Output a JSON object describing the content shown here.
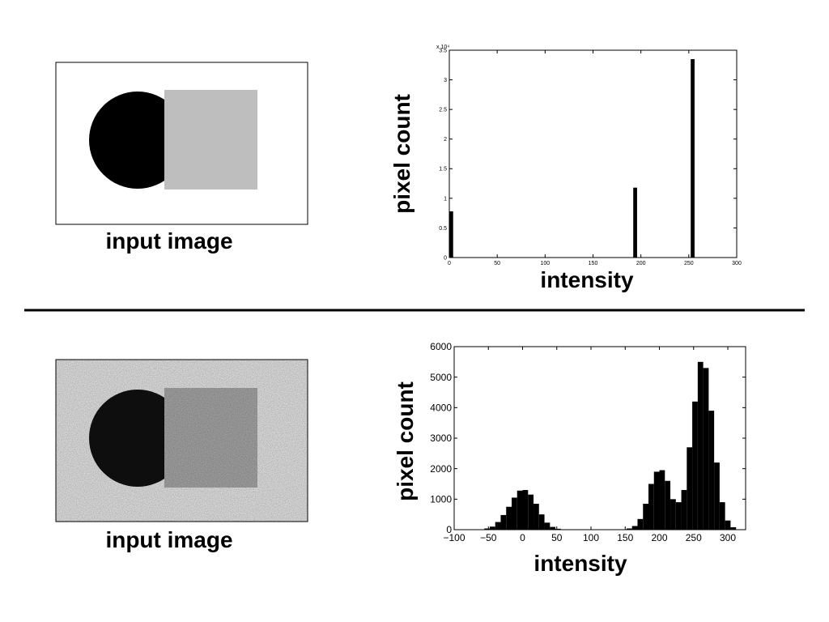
{
  "captions": [
    "input image",
    "input image"
  ],
  "chart_data": [
    {
      "type": "histogram",
      "ylabel": "pixel count",
      "xlabel": "intensity",
      "color": "#000000",
      "y_multiplier": "x 10⁴",
      "xlim": [
        0,
        300
      ],
      "ylim": [
        0,
        3.5
      ],
      "xticks": [
        0,
        50,
        100,
        150,
        200,
        250,
        300
      ],
      "yticks": [
        0,
        0.5,
        1,
        1.5,
        2,
        2.5,
        3,
        3.5
      ],
      "bins": [
        0,
        4,
        8,
        12,
        16,
        20,
        24,
        28,
        32,
        36,
        40,
        44,
        48,
        52,
        56,
        60,
        64,
        68,
        72,
        76,
        80,
        84,
        88,
        92,
        96,
        100,
        104,
        108,
        112,
        116,
        120,
        124,
        128,
        132,
        136,
        140,
        144,
        148,
        152,
        156,
        160,
        164,
        168,
        172,
        176,
        180,
        184,
        188,
        192,
        196,
        200,
        204,
        208,
        212,
        216,
        220,
        224,
        228,
        232,
        236,
        240,
        244,
        248,
        252,
        256
      ],
      "values": [
        0.78,
        0,
        0,
        0,
        0,
        0,
        0,
        0,
        0,
        0,
        0,
        0,
        0,
        0,
        0,
        0,
        0,
        0,
        0,
        0,
        0,
        0,
        0,
        0,
        0,
        0,
        0,
        0,
        0,
        0,
        0,
        0,
        0,
        0,
        0,
        0,
        0,
        0,
        0,
        0,
        0,
        0,
        0,
        0,
        0,
        0,
        0,
        0,
        1.18,
        0,
        0,
        0,
        0,
        0,
        0,
        0,
        0,
        0,
        0,
        0,
        0,
        0,
        0,
        3.35
      ]
    },
    {
      "type": "histogram",
      "ylabel": "pixel count",
      "xlabel": "intensity",
      "color": "#000000",
      "xlim": [
        -100,
        326
      ],
      "ylim": [
        0,
        6000
      ],
      "xticks": [
        {
          "value": -100,
          "label": "−100"
        },
        {
          "value": -50,
          "label": "−50"
        },
        0,
        50,
        100,
        150,
        200,
        250,
        300
      ],
      "yticks": [
        0,
        1000,
        2000,
        3000,
        4000,
        5000,
        6000
      ],
      "bins": [
        -64,
        -56,
        -48,
        -40,
        -32,
        -24,
        -16,
        -8,
        0,
        8,
        16,
        24,
        32,
        40,
        48,
        56,
        64,
        72,
        80,
        88,
        96,
        104,
        112,
        120,
        128,
        136,
        144,
        152,
        160,
        168,
        176,
        184,
        192,
        200,
        208,
        216,
        224,
        232,
        240,
        248,
        256,
        264,
        272,
        280,
        288,
        296,
        304,
        312
      ],
      "values": [
        10,
        40,
        100,
        250,
        480,
        750,
        1050,
        1280,
        1300,
        1150,
        850,
        500,
        230,
        90,
        30,
        10,
        5,
        0,
        0,
        0,
        0,
        0,
        0,
        0,
        0,
        0,
        10,
        40,
        120,
        350,
        850,
        1500,
        1900,
        1950,
        1600,
        1000,
        900,
        1300,
        2700,
        4200,
        5500,
        5300,
        3900,
        2200,
        900,
        300,
        80,
        20
      ]
    }
  ]
}
